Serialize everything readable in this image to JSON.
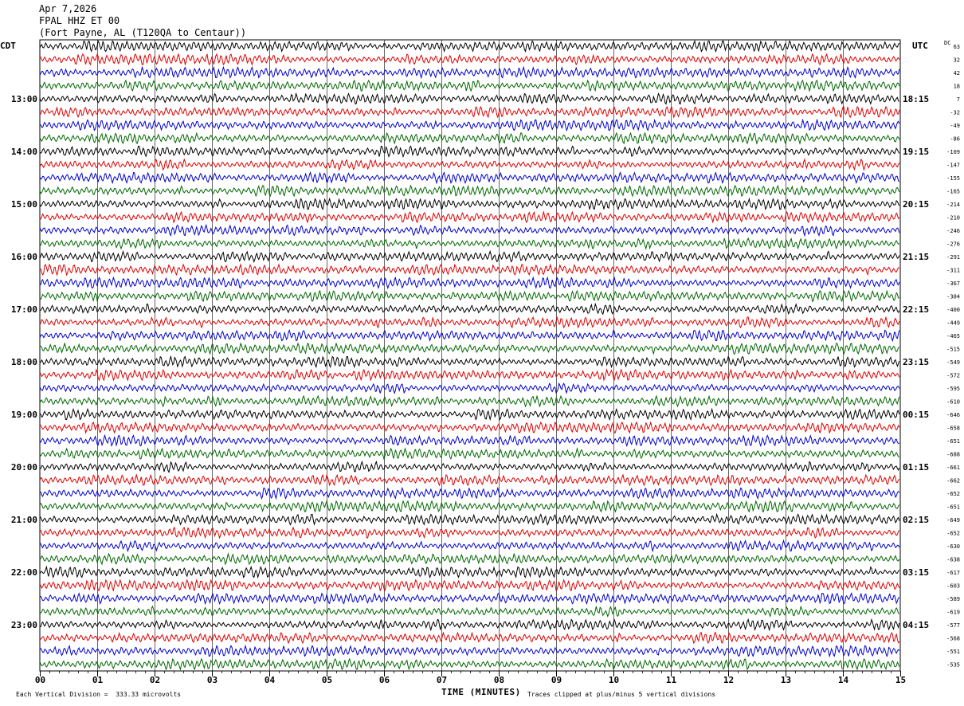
{
  "header": {
    "date": "Apr 7,2026",
    "station": "FPAL HHZ ET 00",
    "location": "(Fort Payne, AL (T120QA to Centaur))"
  },
  "chart_data": {
    "type": "line",
    "title": "",
    "xlabel": "TIME (MINUTES)",
    "ylabel": "",
    "x_ticks": [
      "00",
      "01",
      "02",
      "03",
      "04",
      "05",
      "06",
      "07",
      "08",
      "09",
      "10",
      "11",
      "12",
      "13",
      "14",
      "15"
    ],
    "xlim": [
      0,
      15
    ],
    "left_timezone": "CDT",
    "right_timezone": "UTC",
    "left_hour_labels": [
      "13:00",
      "14:00",
      "15:00",
      "16:00",
      "17:00",
      "18:00",
      "19:00",
      "20:00",
      "21:00",
      "22:00",
      "23:00"
    ],
    "right_hour_labels": [
      "18:15",
      "19:15",
      "20:15",
      "21:15",
      "22:15",
      "23:15",
      "00:15",
      "01:15",
      "02:15",
      "03:15",
      "04:15"
    ],
    "dc_label": "DC",
    "dc_offsets": [
      "63",
      "32",
      "42",
      "18",
      "7",
      "-32",
      "-49",
      "-86",
      "-109",
      "-147",
      "-155",
      "-165",
      "-214",
      "-210",
      "-246",
      "-276",
      "-291",
      "-311",
      "-367",
      "-384",
      "-400",
      "-449",
      "-465",
      "-515",
      "-549",
      "-572",
      "-595",
      "-610",
      "-646",
      "-658",
      "-651",
      "-688",
      "-661",
      "-662",
      "-652",
      "-651",
      "-649",
      "-652",
      "-630",
      "-638",
      "-617",
      "-603",
      "-589",
      "-619",
      "-577",
      "-568",
      "-551",
      "-535"
    ],
    "trace_colors": [
      "#000000",
      "#dd0000",
      "#0000cc",
      "#006600"
    ],
    "trace_count": 48,
    "minutes_per_trace": 15,
    "footer_scale": "Each Vertical Division =  333.33 microvolts",
    "footer_clip": "Traces clipped at plus/minus 5 vertical divisions",
    "grid": true
  }
}
